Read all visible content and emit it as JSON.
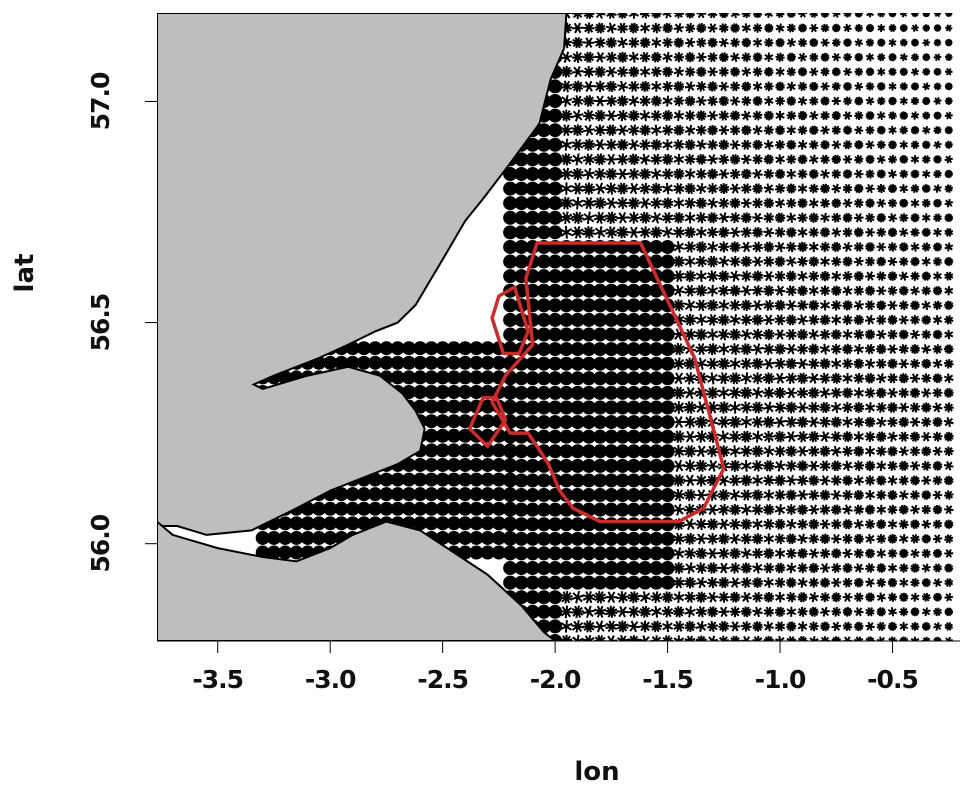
{
  "colors": {
    "land": "#bebebe",
    "sea": "#ffffff",
    "glyph": "#000000",
    "boundary": "#cc2b2b"
  },
  "axes": {
    "xlabel": "lon",
    "ylabel": "lat",
    "xlim": [
      -3.77,
      -0.2
    ],
    "ylim": [
      55.78,
      57.2
    ],
    "xticks": [
      {
        "value": -3.5,
        "label": "-3.5"
      },
      {
        "value": -3.0,
        "label": "-3.0"
      },
      {
        "value": -2.5,
        "label": "-2.5"
      },
      {
        "value": -2.0,
        "label": "-2.0"
      },
      {
        "value": -1.5,
        "label": "-1.5"
      },
      {
        "value": -1.0,
        "label": "-1.0"
      },
      {
        "value": -0.5,
        "label": "-0.5"
      }
    ],
    "yticks": [
      {
        "value": 56.0,
        "label": "56.0"
      },
      {
        "value": 56.5,
        "label": "56.5"
      },
      {
        "value": 57.0,
        "label": "57.0"
      }
    ]
  },
  "map": {
    "glyph_grid": {
      "lon_step": 0.05,
      "lat_step": 0.033,
      "shape": "star glyphs, solid discs in the near-shore zone"
    },
    "coastline_outer": [
      [
        -1.95,
        57.2
      ],
      [
        -1.96,
        57.12
      ],
      [
        -2.02,
        57.05
      ],
      [
        -2.07,
        56.95
      ],
      [
        -2.2,
        56.86
      ],
      [
        -2.32,
        56.78
      ],
      [
        -2.4,
        56.73
      ],
      [
        -2.48,
        56.66
      ],
      [
        -2.55,
        56.6
      ],
      [
        -2.62,
        56.54
      ],
      [
        -2.7,
        56.5
      ],
      [
        -2.8,
        56.48
      ],
      [
        -2.92,
        56.45
      ],
      [
        -3.05,
        56.42
      ],
      [
        -3.25,
        56.38
      ],
      [
        -3.34,
        56.36
      ],
      [
        -3.3,
        56.35
      ],
      [
        -3.1,
        56.38
      ],
      [
        -2.92,
        56.4
      ],
      [
        -2.78,
        56.38
      ],
      [
        -2.68,
        56.34
      ],
      [
        -2.62,
        56.3
      ],
      [
        -2.58,
        56.26
      ],
      [
        -2.6,
        56.21
      ],
      [
        -2.7,
        56.18
      ],
      [
        -2.85,
        56.15
      ],
      [
        -3.0,
        56.12
      ],
      [
        -3.15,
        56.08
      ],
      [
        -3.35,
        56.03
      ],
      [
        -3.55,
        56.02
      ],
      [
        -3.68,
        56.04
      ],
      [
        -3.77,
        56.04
      ],
      [
        -3.77,
        55.78
      ],
      [
        -1.95,
        55.78
      ]
    ],
    "coastline_south": [
      [
        -3.77,
        56.05
      ],
      [
        -3.7,
        56.02
      ],
      [
        -3.5,
        55.99
      ],
      [
        -3.3,
        55.97
      ],
      [
        -3.15,
        55.96
      ],
      [
        -3.0,
        55.99
      ],
      [
        -2.9,
        56.02
      ],
      [
        -2.75,
        56.05
      ],
      [
        -2.6,
        56.03
      ],
      [
        -2.45,
        55.98
      ],
      [
        -2.3,
        55.93
      ],
      [
        -2.15,
        55.86
      ],
      [
        -2.05,
        55.8
      ],
      [
        -2.0,
        55.78
      ]
    ],
    "region_polygons": [
      [
        [
          -1.62,
          56.68
        ],
        [
          -2.08,
          56.68
        ],
        [
          -2.13,
          56.6
        ],
        [
          -2.1,
          56.45
        ],
        [
          -2.22,
          56.38
        ],
        [
          -2.28,
          56.32
        ],
        [
          -2.2,
          56.25
        ],
        [
          -2.12,
          56.25
        ],
        [
          -2.08,
          56.22
        ],
        [
          -2.03,
          56.18
        ],
        [
          -1.98,
          56.12
        ],
        [
          -1.92,
          56.08
        ],
        [
          -1.8,
          56.05
        ],
        [
          -1.45,
          56.05
        ],
        [
          -1.34,
          56.08
        ],
        [
          -1.25,
          56.17
        ],
        [
          -1.38,
          56.42
        ],
        [
          -1.62,
          56.68
        ]
      ],
      [
        [
          -2.18,
          56.58
        ],
        [
          -2.25,
          56.56
        ],
        [
          -2.28,
          56.51
        ],
        [
          -2.23,
          56.43
        ],
        [
          -2.16,
          56.43
        ],
        [
          -2.12,
          56.48
        ],
        [
          -2.15,
          56.53
        ],
        [
          -2.18,
          56.58
        ]
      ],
      [
        [
          -2.32,
          56.33
        ],
        [
          -2.26,
          56.33
        ],
        [
          -2.22,
          56.28
        ],
        [
          -2.3,
          56.22
        ],
        [
          -2.38,
          56.26
        ],
        [
          -2.32,
          56.33
        ]
      ]
    ]
  }
}
